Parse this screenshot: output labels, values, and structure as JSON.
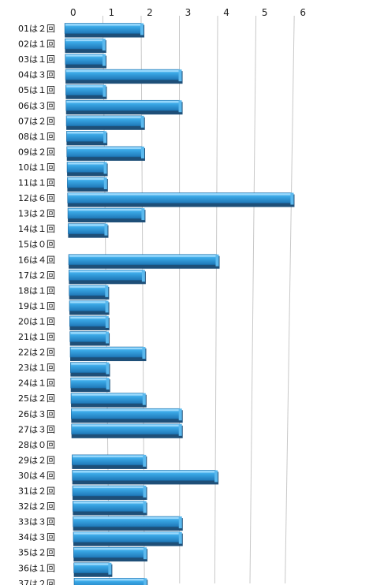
{
  "chart_data": {
    "type": "bar",
    "orientation": "horizontal",
    "categories": [
      "01は２回",
      "02は１回",
      "03は１回",
      "04は３回",
      "05は１回",
      "06は３回",
      "07は２回",
      "08は１回",
      "09は２回",
      "10は１回",
      "11は１回",
      "12は６回",
      "13は２回",
      "14は１回",
      "15は０回",
      "16は４回",
      "17は２回",
      "18は１回",
      "19は１回",
      "20は１回",
      "21は１回",
      "22は２回",
      "23は１回",
      "24は１回",
      "25は２回",
      "26は３回",
      "27は３回",
      "28は０回",
      "29は２回",
      "30は４回",
      "31は２回",
      "32は２回",
      "33は３回",
      "34は３回",
      "35は２回",
      "36は１回",
      "37は２回"
    ],
    "values": [
      2,
      1,
      1,
      3,
      1,
      3,
      2,
      1,
      2,
      1,
      1,
      6,
      2,
      1,
      0,
      4,
      2,
      1,
      1,
      1,
      1,
      2,
      1,
      1,
      2,
      3,
      3,
      0,
      2,
      4,
      2,
      2,
      3,
      3,
      2,
      1,
      2
    ],
    "xlim": [
      0,
      6
    ],
    "xticks": [
      "0",
      "1",
      "2",
      "3",
      "4",
      "5",
      "6"
    ],
    "grid": true,
    "bar_color": "#3aa8e6",
    "bar_shadow_color": "#1e4f78"
  }
}
